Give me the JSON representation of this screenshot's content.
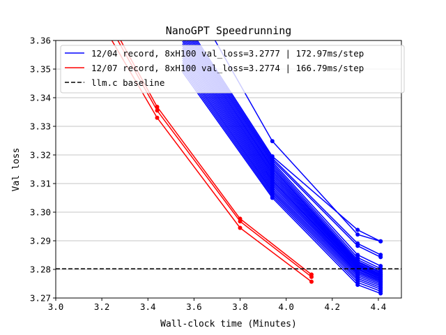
{
  "chart_data": {
    "type": "line",
    "title": "NanoGPT Speedrunning",
    "xlabel": "Wall-clock time (Minutes)",
    "ylabel": "Val loss",
    "xlim": [
      3.0,
      4.5
    ],
    "ylim": [
      3.27,
      3.36
    ],
    "xticks": [
      "3.0",
      "3.2",
      "3.4",
      "3.6",
      "3.8",
      "4.0",
      "4.2",
      "4.4"
    ],
    "yticks": [
      "3.27",
      "3.28",
      "3.29",
      "3.30",
      "3.31",
      "3.32",
      "3.33",
      "3.34",
      "3.35",
      "3.36"
    ],
    "grid": "horizontal",
    "legend_position": "top-right",
    "legend": [
      {
        "label": "12/04 record, 8xH100  val_loss=3.2777 | 172.97ms/step",
        "color": "#0000ff",
        "style": "solid"
      },
      {
        "label": "12/07 record, 8xH100  val_loss=3.2774 | 166.79ms/step",
        "color": "#ff0000",
        "style": "solid"
      },
      {
        "label": "llm.c baseline",
        "color": "#000000",
        "style": "dashed"
      }
    ],
    "baseline": {
      "y": 3.2802,
      "color": "#000000",
      "style": "dashed"
    },
    "blue_runs": {
      "color": "#0000ff",
      "x": [
        3.55,
        3.94,
        4.31,
        4.41
      ],
      "finals": [
        3.2898,
        3.2851,
        3.2843,
        3.2812,
        3.2803,
        3.2796,
        3.2791,
        3.2788,
        3.2784,
        3.2781,
        3.2778,
        3.2775,
        3.2772,
        3.2768,
        3.2765,
        3.2761,
        3.2757,
        3.2753,
        3.2748,
        3.2743,
        3.2737,
        3.2731,
        3.2724,
        3.2716
      ]
    },
    "blue_highlight": {
      "color": "#0000ff",
      "x": [
        3.55,
        3.94,
        4.31,
        4.41
      ],
      "y": [
        3.38,
        3.3248,
        3.2922,
        3.2898
      ]
    },
    "red_runs": {
      "color": "#ff0000",
      "series": [
        {
          "x": [
            3.2,
            3.44,
            3.8,
            4.11
          ],
          "y": [
            3.372,
            3.3368,
            3.2977,
            3.2782
          ]
        },
        {
          "x": [
            3.2,
            3.44,
            3.8,
            4.11
          ],
          "y": [
            3.37,
            3.3355,
            3.2968,
            3.2774
          ]
        },
        {
          "x": [
            3.2,
            3.44,
            3.8,
            4.11
          ],
          "y": [
            3.366,
            3.333,
            3.2945,
            3.2757
          ]
        }
      ]
    }
  }
}
